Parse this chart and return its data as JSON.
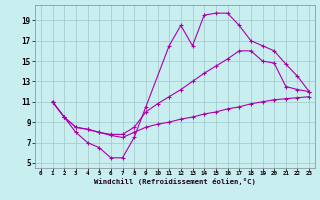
{
  "xlabel": "Windchill (Refroidissement éolien,°C)",
  "bg_color": "#c8eef0",
  "grid_color": "#a0c8c8",
  "line_color": "#aa00aa",
  "xlim": [
    -0.5,
    23.5
  ],
  "ylim": [
    4.5,
    20.5
  ],
  "xticks": [
    0,
    1,
    2,
    3,
    4,
    5,
    6,
    7,
    8,
    9,
    10,
    11,
    12,
    13,
    14,
    15,
    16,
    17,
    18,
    19,
    20,
    21,
    22,
    23
  ],
  "yticks": [
    5,
    7,
    9,
    11,
    13,
    15,
    17,
    19
  ],
  "line1_x": [
    1,
    2,
    3,
    4,
    5,
    6,
    7,
    8,
    9,
    11,
    12,
    13,
    14,
    15,
    16,
    17,
    18,
    19,
    20,
    21,
    22,
    23
  ],
  "line1_y": [
    11,
    9.5,
    8,
    7,
    6.5,
    5.5,
    5.5,
    7.5,
    10.5,
    16.5,
    18.5,
    16.5,
    19.5,
    19.7,
    19.7,
    18.5,
    17,
    16.5,
    16,
    14.7,
    13.5,
    12
  ],
  "line2_x": [
    1,
    2,
    3,
    4,
    5,
    6,
    7,
    8,
    9,
    10,
    11,
    12,
    13,
    14,
    15,
    16,
    17,
    18,
    19,
    20,
    21,
    22,
    23
  ],
  "line2_y": [
    11,
    9.5,
    8.5,
    8.3,
    8.0,
    7.7,
    7.5,
    8.0,
    8.5,
    8.8,
    9.0,
    9.3,
    9.5,
    9.8,
    10.0,
    10.3,
    10.5,
    10.8,
    11.0,
    11.2,
    11.3,
    11.4,
    11.5
  ],
  "line3_x": [
    1,
    2,
    3,
    4,
    5,
    6,
    7,
    8,
    9,
    10,
    11,
    12,
    13,
    14,
    15,
    16,
    17,
    18,
    19,
    20,
    21,
    22,
    23
  ],
  "line3_y": [
    11,
    9.5,
    8.5,
    8.3,
    8.0,
    7.8,
    7.8,
    8.5,
    10.0,
    10.8,
    11.5,
    12.2,
    13.0,
    13.8,
    14.5,
    15.2,
    16.0,
    16.0,
    15.0,
    14.8,
    12.5,
    12.2,
    12.0
  ]
}
